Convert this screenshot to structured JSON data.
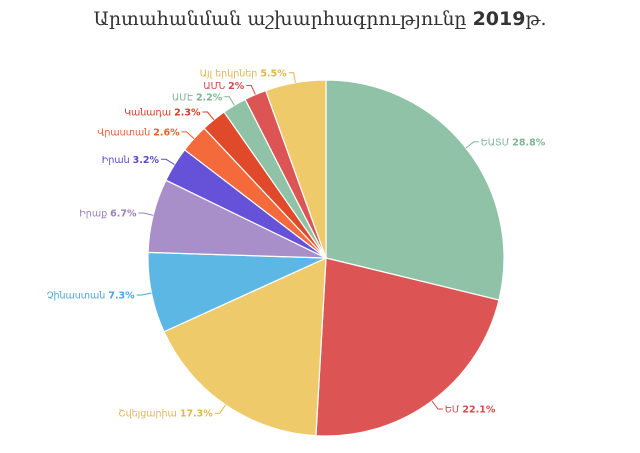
{
  "page": {
    "title_text": "Արտահանման աշխարհագրությունը ",
    "title_year": "2019",
    "title_suffix": "թ."
  },
  "chart_data": {
    "type": "pie",
    "title": "Արտահանման աշխարհագրությունը 2019թ.",
    "start_angle_deg": 0,
    "direction": "clockwise",
    "slices": [
      {
        "label": "ԵԱՏՄ",
        "value": 28.8,
        "display": "28.8%",
        "color": "#8fc2a6",
        "text_color": "#7fb596"
      },
      {
        "label": "ԵՄ",
        "value": 22.1,
        "display": "22.1%",
        "color": "#dc5454",
        "text_color": "#d24a4a"
      },
      {
        "label": "Շվեյցարիա",
        "value": 17.3,
        "display": "17.3%",
        "color": "#efca6a",
        "text_color": "#e0b64c"
      },
      {
        "label": "Չինաստան",
        "value": 7.3,
        "display": "7.3%",
        "color": "#5db7e5",
        "text_color": "#4aa6d6"
      },
      {
        "label": "Իրաք",
        "value": 6.7,
        "display": "6.7%",
        "color": "#a98fca",
        "text_color": "#9a80bd"
      },
      {
        "label": "Իրան",
        "value": 3.2,
        "display": "3.2%",
        "color": "#6652d8",
        "text_color": "#5848c8"
      },
      {
        "label": "Վրաստան",
        "value": 2.6,
        "display": "2.6%",
        "color": "#f46a3a",
        "text_color": "#e95e2f"
      },
      {
        "label": "Կանադա",
        "value": 2.3,
        "display": "2.3%",
        "color": "#e04a2a",
        "text_color": "#d23f22"
      },
      {
        "label": "ԱՄԷ",
        "value": 2.2,
        "display": "2.2%",
        "color": "#8fc2a6",
        "text_color": "#7fb596"
      },
      {
        "label": "ԱՄՆ",
        "value": 2.0,
        "display": "2%",
        "color": "#dc5454",
        "text_color": "#d24a4a"
      },
      {
        "label": "Այլ երկրներ",
        "value": 5.5,
        "display": "5.5%",
        "color": "#efca6a",
        "text_color": "#e0b64c"
      }
    ]
  }
}
